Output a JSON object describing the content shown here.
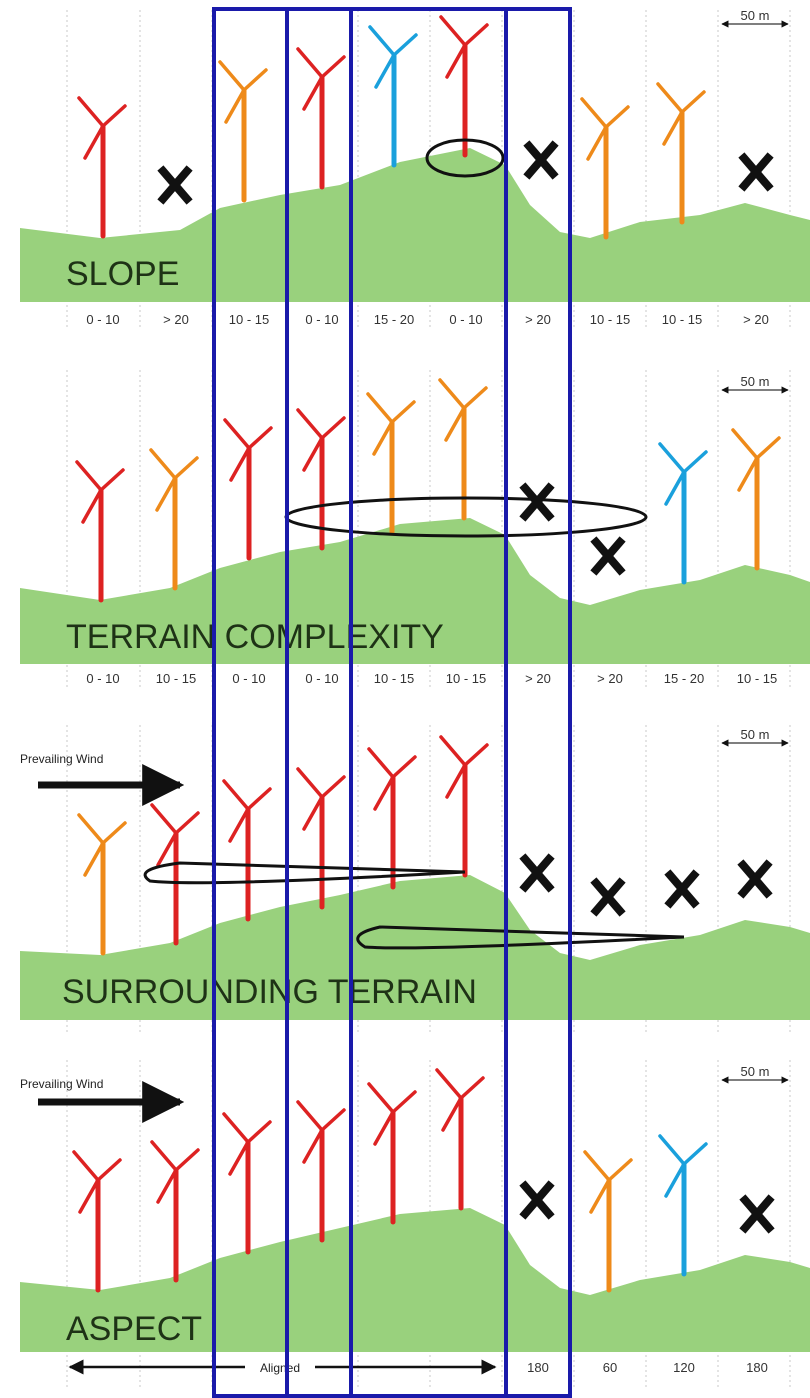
{
  "scale_label": "50 m",
  "wind_label": "Prevailing Wind",
  "aligned_label": "Aligned",
  "colors": {
    "red": "#dd2222",
    "orange": "#ee8a1a",
    "blue": "#1aa0dc",
    "terrain": "#99d17d",
    "frame": "#1a1aaa"
  },
  "panels": [
    {
      "title": "SLOPE",
      "categories": [
        "0 - 10",
        "> 20",
        "10 - 15",
        "0 - 10",
        "15 - 20",
        "0 - 10",
        "> 20",
        "10 - 15",
        "10 - 15",
        "> 20"
      ],
      "markers": [
        "red",
        "x",
        "orange",
        "red",
        "blue",
        "red",
        "x",
        "orange",
        "orange",
        "x"
      ]
    },
    {
      "title": "TERRAIN COMPLEXITY",
      "categories": [
        "0 - 10",
        "10 - 15",
        "0 - 10",
        "0 - 10",
        "10 - 15",
        "10 - 15",
        "> 20",
        "> 20",
        "15 - 20",
        "10 - 15"
      ],
      "markers": [
        "red",
        "orange",
        "red",
        "red",
        "orange",
        "orange",
        "x",
        "x",
        "blue",
        "orange"
      ]
    },
    {
      "title": "SURROUNDING TERRAIN",
      "categories": [],
      "markers": [
        "orange",
        "red",
        "red",
        "red",
        "red",
        "red",
        "x",
        "x",
        "x",
        "x"
      ]
    },
    {
      "title": "ASPECT",
      "categories": [
        "",
        "",
        "",
        "",
        "",
        "",
        "180",
        "60",
        "120",
        "180"
      ],
      "markers": [
        "red",
        "red",
        "red",
        "red",
        "red",
        "red",
        "x",
        "orange",
        "blue",
        "x"
      ]
    }
  ]
}
